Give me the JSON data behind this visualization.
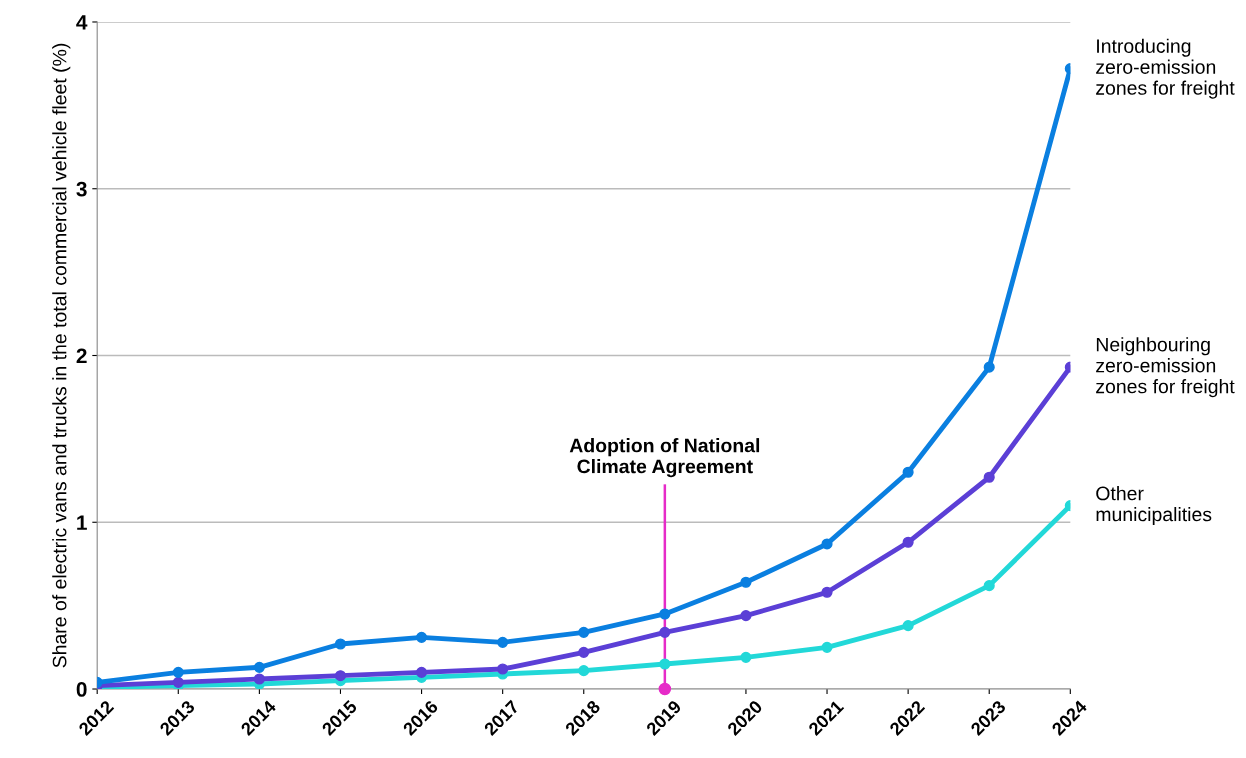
{
  "chart_data": {
    "type": "line",
    "ylabel": "Share of electric vans and trucks in the total commercial vehicle fleet (%)",
    "x": [
      2012,
      2013,
      2014,
      2015,
      2016,
      2017,
      2018,
      2019,
      2020,
      2021,
      2022,
      2023,
      2024
    ],
    "series": [
      {
        "name": "Introducing\nzero-emission\nzones for freight",
        "color": "#0a7fe0",
        "values": [
          0.04,
          0.1,
          0.13,
          0.27,
          0.31,
          0.28,
          0.34,
          0.45,
          0.64,
          0.87,
          1.3,
          1.93,
          3.72
        ]
      },
      {
        "name": "Neighbouring\nzero-emission\nzones for freight",
        "color": "#5b3fd6",
        "values": [
          0.02,
          0.04,
          0.06,
          0.08,
          0.1,
          0.12,
          0.22,
          0.34,
          0.44,
          0.58,
          0.88,
          1.27,
          1.93
        ]
      },
      {
        "name": "Other\nmunicipalities",
        "color": "#22d8d8",
        "values": [
          0.01,
          0.02,
          0.03,
          0.05,
          0.07,
          0.09,
          0.11,
          0.15,
          0.19,
          0.25,
          0.38,
          0.62,
          1.1
        ]
      }
    ],
    "xlim": [
      2012,
      2024
    ],
    "xticks": [
      2012,
      2013,
      2014,
      2015,
      2016,
      2017,
      2018,
      2019,
      2020,
      2021,
      2022,
      2023,
      2024
    ],
    "ylim": [
      0,
      4
    ],
    "yticks": [
      0,
      1,
      2,
      3,
      4
    ],
    "ref_lines": [
      {
        "axis": "x",
        "value": 2019,
        "label": "Adoption of National\nClimate Agreement",
        "color": "#e62bc8"
      }
    ],
    "grid": "y",
    "legend": false,
    "marker": "circle",
    "line_style": "solid"
  }
}
